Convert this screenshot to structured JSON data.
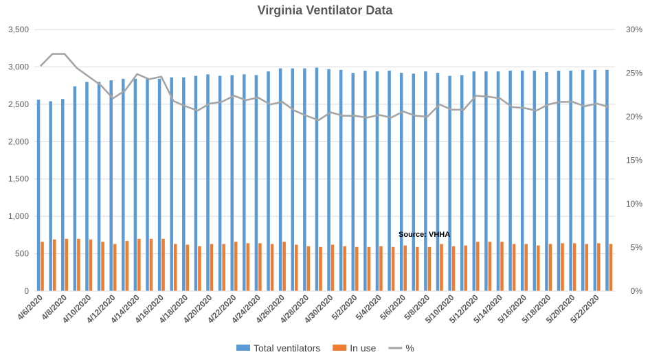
{
  "chart_data": {
    "type": "bar",
    "title": "Virginia Ventilator Data",
    "annotation": "Source: VHHA",
    "x": [
      "4/6/2020",
      "4/7/2020",
      "4/8/2020",
      "4/9/2020",
      "4/10/2020",
      "4/11/2020",
      "4/12/2020",
      "4/13/2020",
      "4/14/2020",
      "4/15/2020",
      "4/16/2020",
      "4/17/2020",
      "4/18/2020",
      "4/19/2020",
      "4/20/2020",
      "4/21/2020",
      "4/22/2020",
      "4/23/2020",
      "4/24/2020",
      "4/25/2020",
      "4/26/2020",
      "4/27/2020",
      "4/28/2020",
      "4/29/2020",
      "4/30/2020",
      "5/1/2020",
      "5/2/2020",
      "5/3/2020",
      "5/4/2020",
      "5/5/2020",
      "5/6/2020",
      "5/7/2020",
      "5/8/2020",
      "5/9/2020",
      "5/10/2020",
      "5/11/2020",
      "5/12/2020",
      "5/13/2020",
      "5/14/2020",
      "5/15/2020",
      "5/16/2020",
      "5/17/2020",
      "5/18/2020",
      "5/19/2020",
      "5/20/2020",
      "5/21/2020",
      "5/22/2020",
      "5/23/2020"
    ],
    "x_tick_labels": [
      "4/6/2020",
      "4/8/2020",
      "4/10/2020",
      "4/12/2020",
      "4/14/2020",
      "4/16/2020",
      "4/18/2020",
      "4/20/2020",
      "4/22/2020",
      "4/24/2020",
      "4/26/2020",
      "4/28/2020",
      "4/30/2020",
      "5/2/2020",
      "5/4/2020",
      "5/6/2020",
      "5/8/2020",
      "5/10/2020",
      "5/12/2020",
      "5/14/2020",
      "5/16/2020",
      "5/18/2020",
      "5/20/2020",
      "5/22/2020"
    ],
    "series": [
      {
        "name": "Total ventilators",
        "axis": "left",
        "kind": "bar",
        "color": "#5B9BD5",
        "values": [
          2560,
          2540,
          2570,
          2740,
          2800,
          2800,
          2820,
          2840,
          2840,
          2850,
          2840,
          2860,
          2860,
          2880,
          2900,
          2880,
          2890,
          2900,
          2890,
          2940,
          2980,
          2980,
          2980,
          2990,
          2970,
          2960,
          2920,
          2950,
          2940,
          2950,
          2920,
          2910,
          2940,
          2920,
          2880,
          2890,
          2940,
          2940,
          2940,
          2950,
          2950,
          2950,
          2930,
          2950,
          2950,
          2960,
          2960,
          2960
        ]
      },
      {
        "name": "In use",
        "axis": "left",
        "kind": "bar",
        "color": "#ED7D31",
        "values": [
          660,
          690,
          700,
          700,
          690,
          660,
          630,
          670,
          700,
          700,
          700,
          630,
          620,
          600,
          630,
          630,
          660,
          640,
          640,
          630,
          660,
          620,
          600,
          590,
          620,
          600,
          590,
          590,
          600,
          590,
          610,
          590,
          590,
          630,
          600,
          610,
          660,
          660,
          660,
          630,
          630,
          610,
          630,
          640,
          640,
          630,
          640,
          630
        ]
      },
      {
        "name": "%",
        "axis": "right",
        "kind": "line",
        "color": "#A5A5A5",
        "values": [
          25.8,
          27.2,
          27.2,
          25.6,
          24.6,
          23.6,
          22.1,
          23.0,
          24.9,
          24.3,
          24.6,
          21.8,
          21.2,
          20.7,
          21.5,
          21.7,
          22.4,
          21.9,
          22.2,
          21.4,
          21.7,
          20.7,
          20.1,
          19.6,
          20.5,
          20.1,
          20.1,
          19.9,
          20.2,
          19.9,
          20.6,
          20.1,
          20.0,
          21.4,
          20.8,
          20.8,
          22.4,
          22.3,
          22.1,
          21.1,
          21.0,
          20.7,
          21.4,
          21.7,
          21.7,
          21.2,
          21.5,
          21.1
        ]
      }
    ],
    "y_left": {
      "ylim": [
        0,
        3500
      ],
      "ticks": [
        0,
        500,
        1000,
        1500,
        2000,
        2500,
        3000,
        3500
      ],
      "tick_labels": [
        "0",
        "500",
        "1,000",
        "1,500",
        "2,000",
        "2,500",
        "3,000",
        "3,500"
      ]
    },
    "y_right": {
      "ylim": [
        0,
        30
      ],
      "ticks": [
        0,
        5,
        10,
        15,
        20,
        25,
        30
      ],
      "tick_labels": [
        "0%",
        "5%",
        "10%",
        "15%",
        "20%",
        "25%",
        "30%"
      ]
    },
    "grid": true,
    "legend_position": "bottom"
  }
}
